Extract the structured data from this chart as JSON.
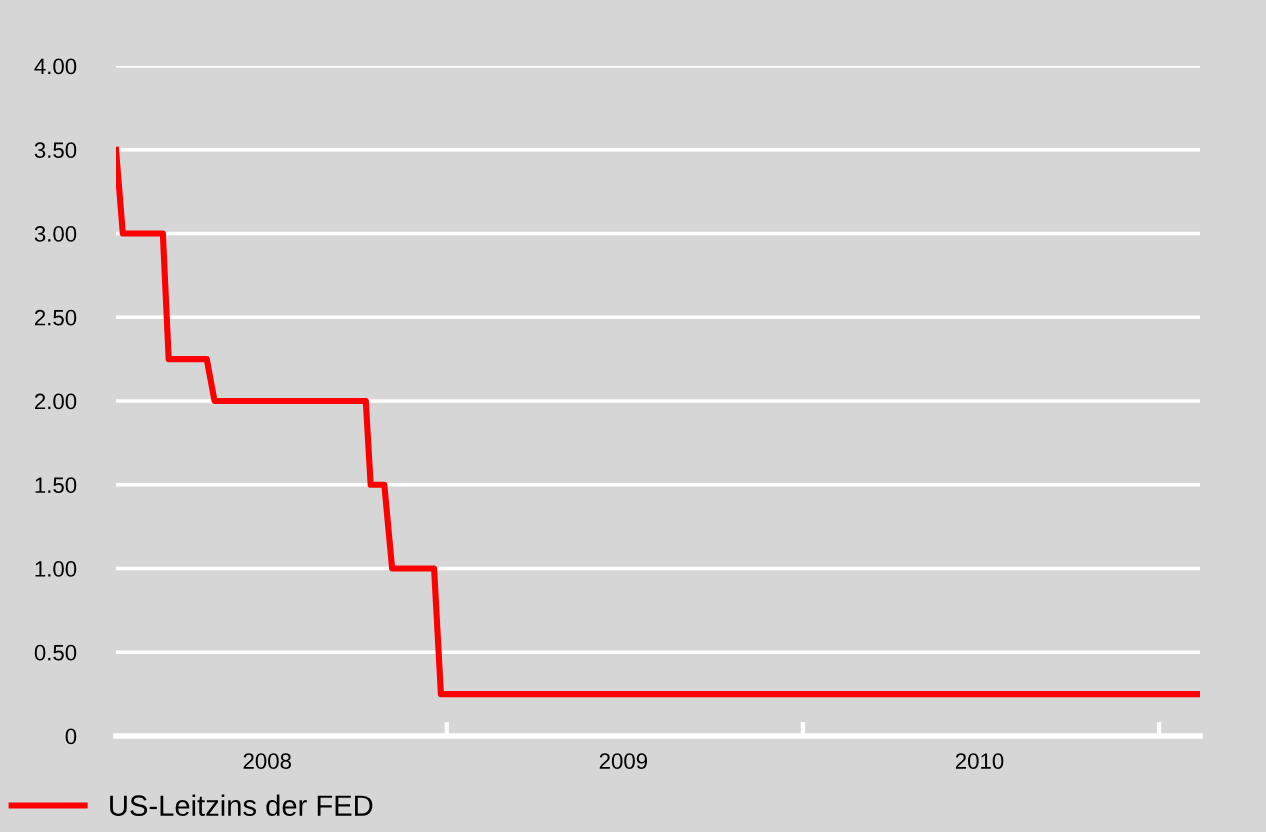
{
  "chart_data": {
    "type": "line",
    "x": [
      "2008-01-28",
      "2008-02-04",
      "2008-03-16",
      "2008-03-22",
      "2008-04-30",
      "2008-05-08",
      "2008-10-10",
      "2008-10-15",
      "2008-10-29",
      "2008-11-06",
      "2008-12-19",
      "2008-12-26",
      "2011-02-12"
    ],
    "series": [
      {
        "name": "US-Leitzins der FED",
        "color": "#ff0000",
        "values": [
          3.5,
          3.0,
          3.0,
          2.25,
          2.25,
          2.0,
          2.0,
          1.5,
          1.5,
          1.0,
          1.0,
          0.25,
          0.25
        ]
      }
    ],
    "xlim": [
      "2008-01-28",
      "2011-02-12"
    ],
    "xticks": [
      {
        "value": "2008-07-01",
        "label": "2008"
      },
      {
        "value": "2009-01-01",
        "label": null
      },
      {
        "value": "2009-07-01",
        "label": "2009"
      },
      {
        "value": "2010-01-01",
        "label": null
      },
      {
        "value": "2010-07-01",
        "label": "2010"
      },
      {
        "value": "2011-01-01",
        "label": null
      }
    ],
    "ylim": [
      0,
      4
    ],
    "yticks": [
      0,
      {
        "value": 0.5,
        "label": "0.50"
      },
      {
        "value": 1,
        "label": "1.00"
      },
      {
        "value": 1.5,
        "label": "1.50"
      },
      {
        "value": 2,
        "label": "2.00"
      },
      {
        "value": 2.5,
        "label": "2.50"
      },
      {
        "value": 3,
        "label": "3.00"
      },
      {
        "value": 3.5,
        "label": "3.50"
      },
      {
        "value": 4,
        "label": "4.00"
      }
    ],
    "grid": "y",
    "legend": "bottom left",
    "line_style": "solid",
    "marker": "none"
  }
}
